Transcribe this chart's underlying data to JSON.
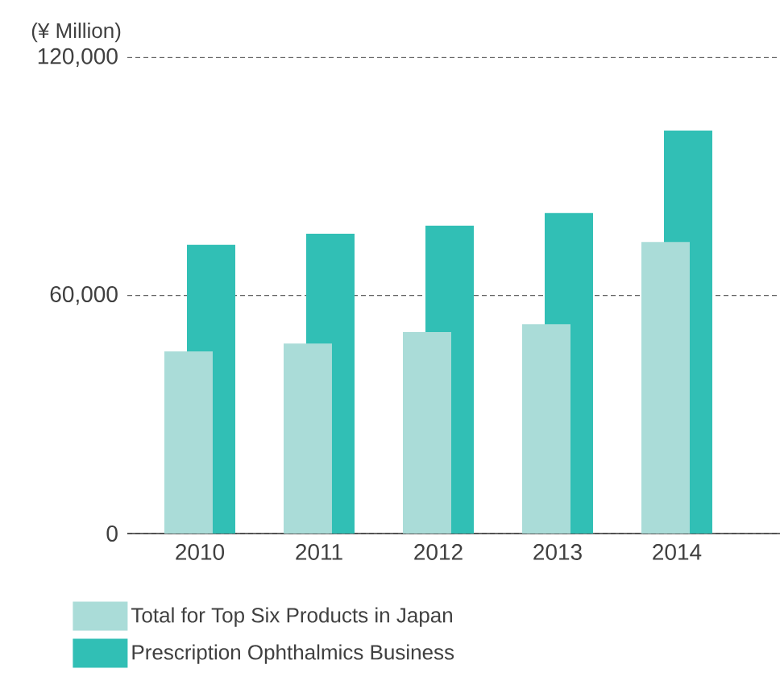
{
  "chart_data": {
    "type": "bar",
    "ylabel": "(¥ Million)",
    "categories": [
      "2010",
      "2011",
      "2012",
      "2013",
      "2014"
    ],
    "series": [
      {
        "name": "Total for Top Six Products in Japan",
        "color": "#aadcd8",
        "values": [
          45900,
          47900,
          50800,
          52800,
          73500
        ]
      },
      {
        "name": "Prescription Ophthalmics Business",
        "color": "#31bfb5",
        "values": [
          72800,
          75600,
          77600,
          80800,
          101600
        ]
      }
    ],
    "ylim": [
      0,
      120000
    ],
    "yticks": [
      0,
      {
        "value": 60000,
        "label": "60,000"
      },
      {
        "value": 120000,
        "label": "120,000"
      }
    ],
    "grid": "y",
    "legend": "bottom"
  }
}
